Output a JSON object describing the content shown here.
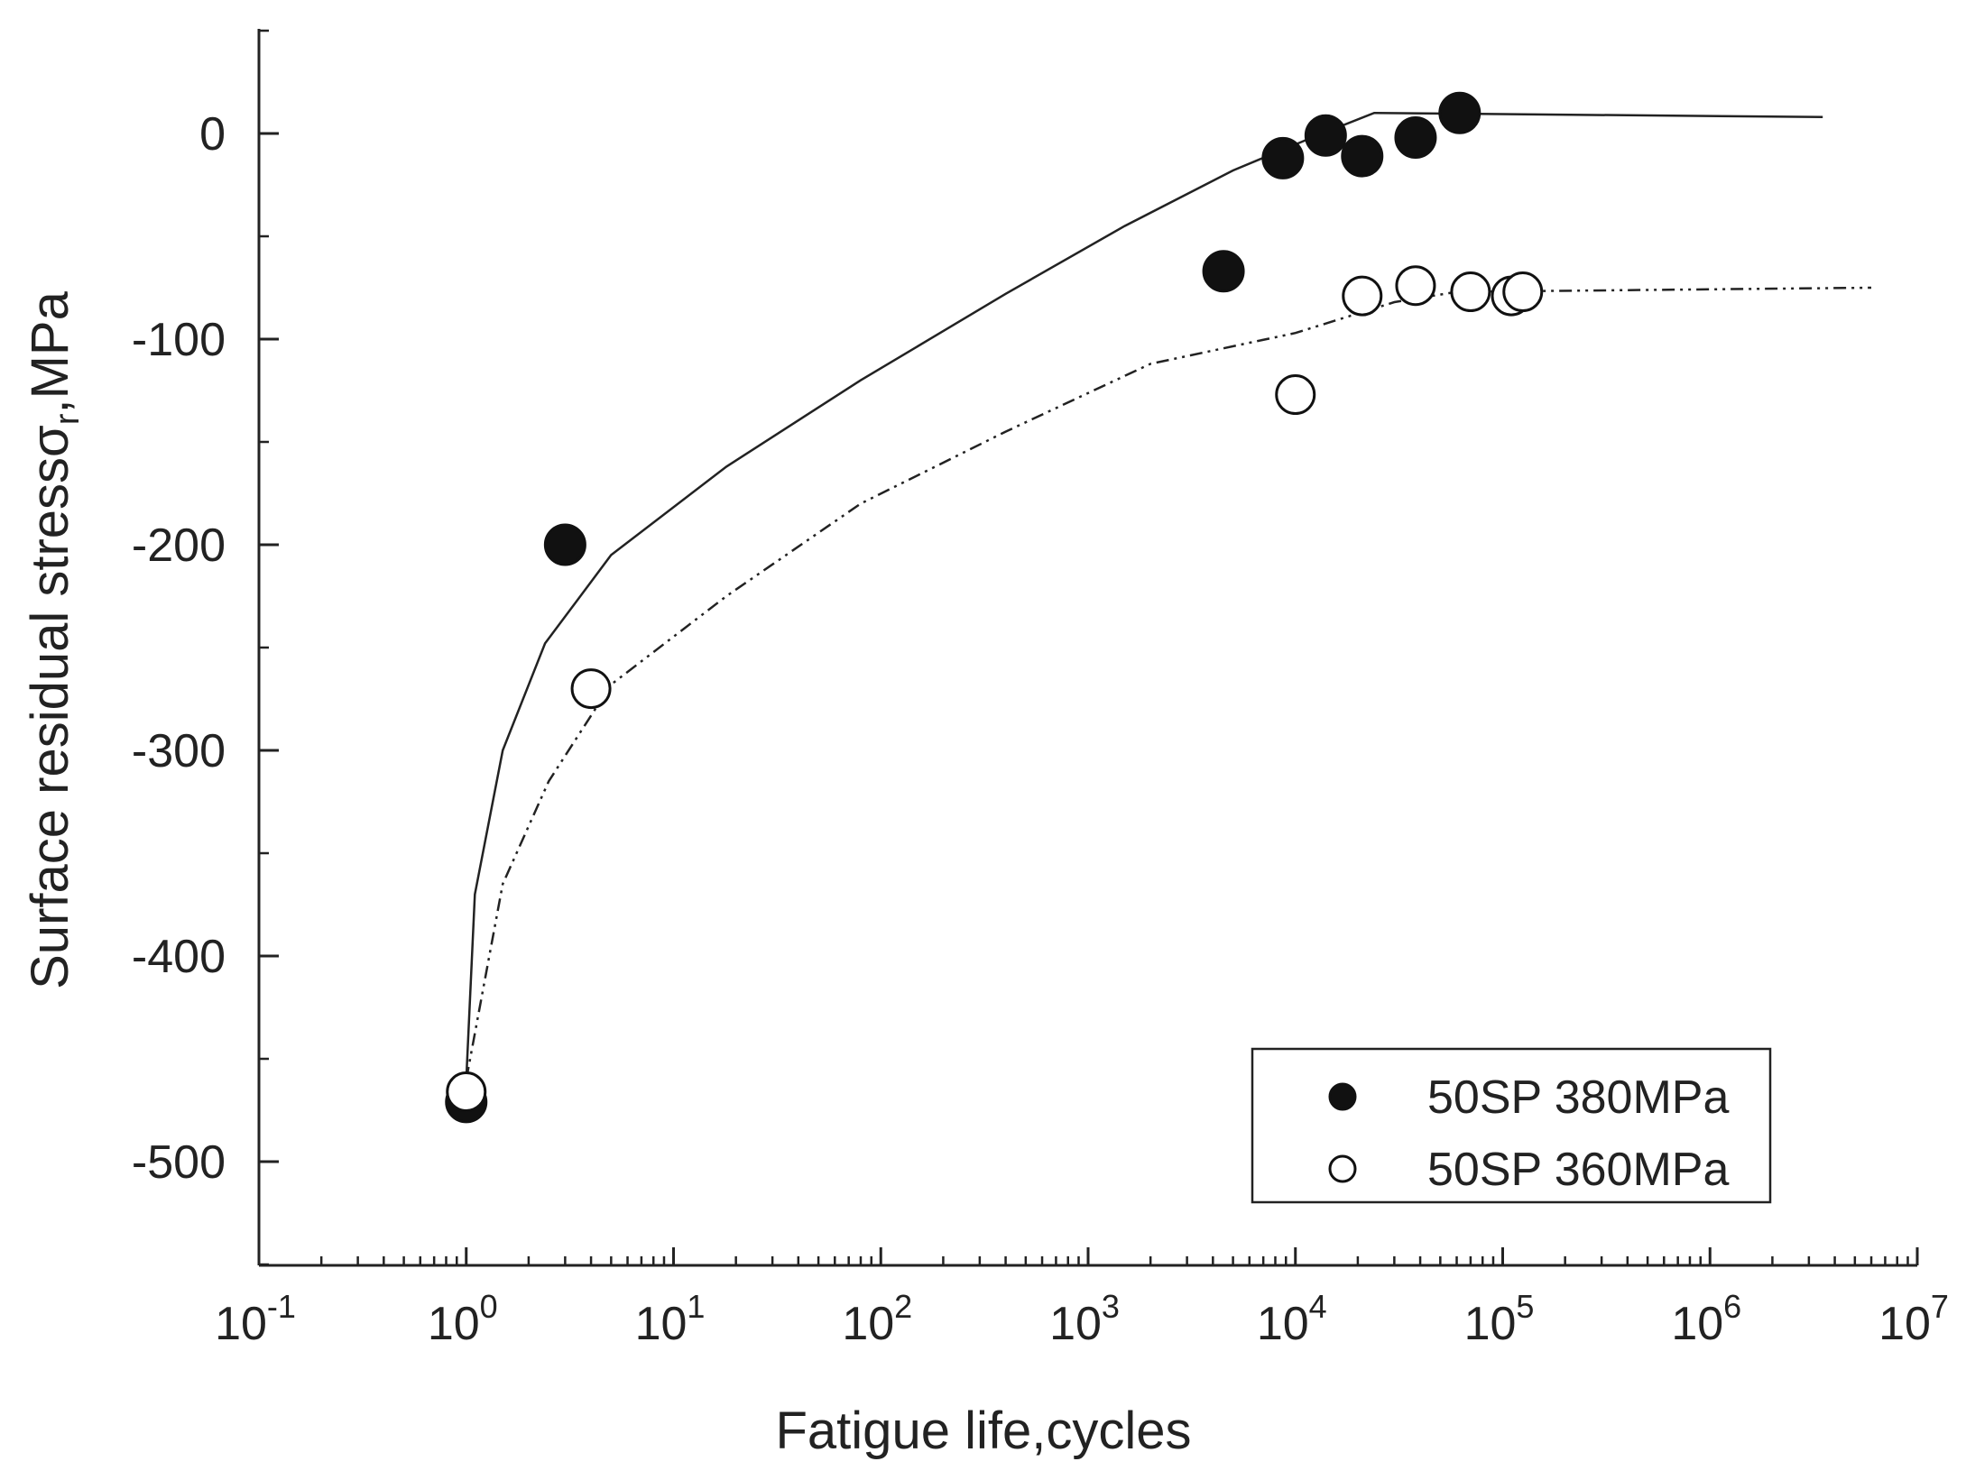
{
  "chart_data": {
    "type": "scatter",
    "xlabel": "Fatigue life,cycles",
    "ylabel_main": "Surface residual stress",
    "ylabel_symbol": "σ",
    "ylabel_subscript": "r",
    "ylabel_unit": ",MPa",
    "xscale": "log",
    "xlim": [
      0.1,
      10000000
    ],
    "ylim": [
      -550,
      50
    ],
    "x_ticks": [
      {
        "value": 0.1,
        "base": "10",
        "exp": "-1"
      },
      {
        "value": 1,
        "base": "10",
        "exp": "0"
      },
      {
        "value": 10,
        "base": "10",
        "exp": "1"
      },
      {
        "value": 100,
        "base": "10",
        "exp": "2"
      },
      {
        "value": 1000,
        "base": "10",
        "exp": "3"
      },
      {
        "value": 10000,
        "base": "10",
        "exp": "4"
      },
      {
        "value": 100000,
        "base": "10",
        "exp": "5"
      },
      {
        "value": 1000000,
        "base": "10",
        "exp": "6"
      },
      {
        "value": 10000000,
        "base": "10",
        "exp": "7"
      }
    ],
    "y_ticks": [
      {
        "value": 0,
        "label": "0"
      },
      {
        "value": -100,
        "label": "-100"
      },
      {
        "value": -200,
        "label": "-200"
      },
      {
        "value": -300,
        "label": "-300"
      },
      {
        "value": -400,
        "label": "-400"
      },
      {
        "value": -500,
        "label": "-500"
      }
    ],
    "legend_position": "bottom-right",
    "series": [
      {
        "name": "50SP 380MPa",
        "marker": "filled-circle",
        "color": "#111111",
        "points": [
          {
            "x": 1,
            "y": -471
          },
          {
            "x": 3,
            "y": -200
          },
          {
            "x": 4500,
            "y": -67
          },
          {
            "x": 8700,
            "y": -12
          },
          {
            "x": 14000,
            "y": -1
          },
          {
            "x": 21000,
            "y": -11
          },
          {
            "x": 38000,
            "y": -2
          },
          {
            "x": 62000,
            "y": 10
          }
        ],
        "fit_line": {
          "style": "solid",
          "points": [
            {
              "x": 1,
              "y": -460
            },
            {
              "x": 1.1,
              "y": -370
            },
            {
              "x": 1.5,
              "y": -300
            },
            {
              "x": 2.4,
              "y": -248
            },
            {
              "x": 5,
              "y": -205
            },
            {
              "x": 18,
              "y": -162
            },
            {
              "x": 80,
              "y": -120
            },
            {
              "x": 400,
              "y": -78
            },
            {
              "x": 1500,
              "y": -45
            },
            {
              "x": 5000,
              "y": -18
            },
            {
              "x": 12000,
              "y": -2
            },
            {
              "x": 24000,
              "y": 10
            },
            {
              "x": 3500000,
              "y": 8
            }
          ]
        }
      },
      {
        "name": "50SP 360MPa",
        "marker": "open-circle",
        "color": "#111111",
        "points": [
          {
            "x": 1,
            "y": -466
          },
          {
            "x": 4,
            "y": -270
          },
          {
            "x": 10000,
            "y": -127
          },
          {
            "x": 21000,
            "y": -79
          },
          {
            "x": 38000,
            "y": -74
          },
          {
            "x": 70000,
            "y": -77
          },
          {
            "x": 110000,
            "y": -79
          },
          {
            "x": 125000,
            "y": -77
          }
        ],
        "fit_line": {
          "style": "dash-dot-dot",
          "points": [
            {
              "x": 1,
              "y": -460
            },
            {
              "x": 1.5,
              "y": -365
            },
            {
              "x": 2.5,
              "y": -315
            },
            {
              "x": 5,
              "y": -268
            },
            {
              "x": 18,
              "y": -225
            },
            {
              "x": 80,
              "y": -180
            },
            {
              "x": 400,
              "y": -145
            },
            {
              "x": 2000,
              "y": -112
            },
            {
              "x": 10000,
              "y": -97
            },
            {
              "x": 30000,
              "y": -82
            },
            {
              "x": 60000,
              "y": -77
            },
            {
              "x": 6000000,
              "y": -75
            }
          ]
        }
      }
    ]
  }
}
